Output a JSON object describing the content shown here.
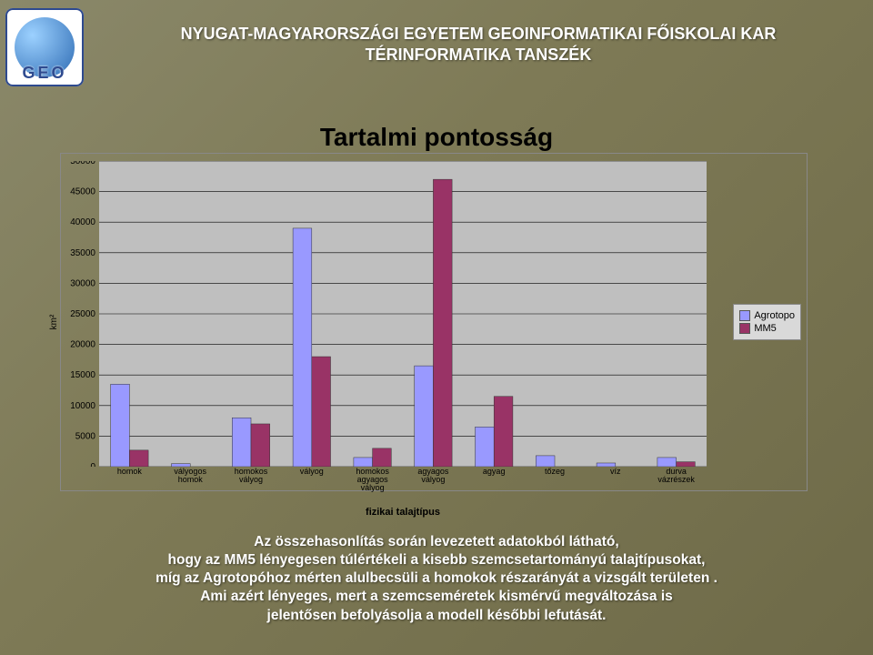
{
  "header": {
    "line1": "NYUGAT-MAGYARORSZÁGI EGYETEM GEOINFORMATIKAI FŐISKOLAI KAR",
    "line2": "TÉRINFORMATIKA TANSZÉK",
    "logo_text": "GEO"
  },
  "chart": {
    "type": "bar",
    "title": "Tartalmi pontosság",
    "ylabel": "km²",
    "xlabel": "fizikai talajtípus",
    "ylim": [
      0,
      50000
    ],
    "ytick_step": 5000,
    "background_color": "#bfbfbf",
    "grid_color": "#000000",
    "series": [
      {
        "name": "Agrotopo",
        "color": "#9999ff"
      },
      {
        "name": "MM5",
        "color": "#993366"
      }
    ],
    "categories": [
      "homok",
      "vályogos homok",
      "homokos vályog",
      "vályog",
      "homokos agyagos vályog",
      "agyagos vályog",
      "agyag",
      "tőzeg",
      "víz",
      "durva vázrészek"
    ],
    "values": {
      "Agrotopo": [
        13500,
        500,
        8000,
        39000,
        1500,
        16500,
        6500,
        1800,
        600,
        1500
      ],
      "MM5": [
        2700,
        0,
        7000,
        18000,
        3000,
        47000,
        11500,
        0,
        0,
        800
      ]
    },
    "bar_group_width": 0.62,
    "label_fontsize": 11,
    "title_fontsize": 28
  },
  "caption": {
    "l1": "Az összehasonlítás során levezetett adatokból látható,",
    "l2": "hogy az MM5 lényegesen túlértékeli a kisebb szemcsetartományú talajtípusokat,",
    "l3": "míg az Agrotopóhoz mérten alulbecsüli a homokok részarányát a vizsgált területen .",
    "l4": "Ami azért lényeges, mert a szemcseméretek kismérvű megváltozása is",
    "l5": "jelentősen befolyásolja a modell későbbi lefutását."
  }
}
